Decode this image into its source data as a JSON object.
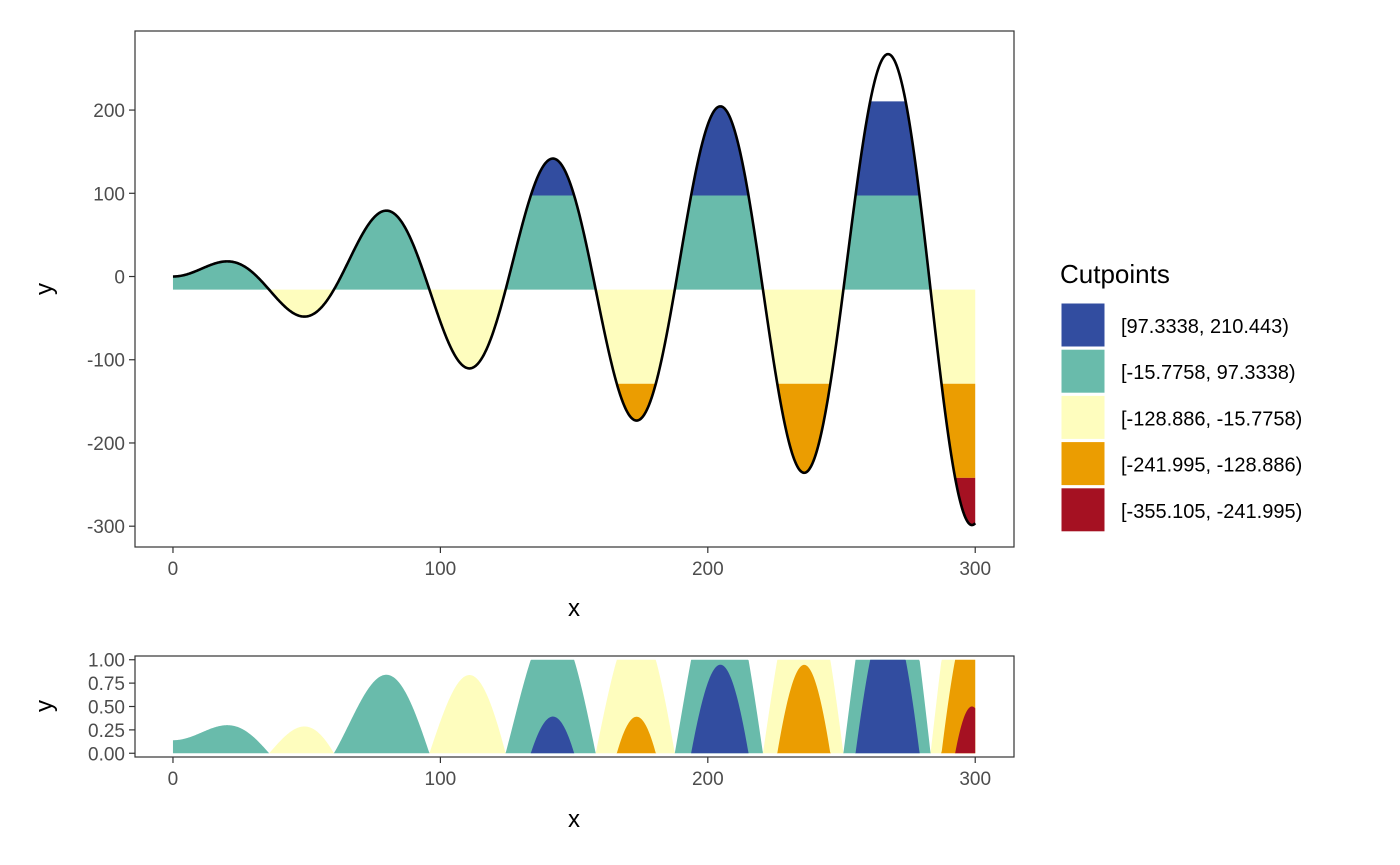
{
  "chart_data": [
    {
      "type": "area",
      "description_role": "main",
      "function": "y = x * sin(x / 10)",
      "x_range": [
        0,
        300
      ],
      "xlabel": "x",
      "ylabel": "y",
      "xlim": [
        -14.2,
        314.5
      ],
      "ylim": [
        -325,
        295
      ],
      "xticks": [
        0,
        100,
        200,
        300
      ],
      "yticks": [
        -300,
        -200,
        -100,
        0,
        100,
        200
      ],
      "ytick_labels": [
        "-300",
        "-200",
        "-100",
        "0",
        "100",
        "200"
      ],
      "baseline": -15.7758,
      "grid": false,
      "legend_position": "right",
      "legend": {
        "title": "Cutpoints",
        "items": [
          {
            "label": "[97.3338, 210.443)",
            "color": "#324DA0",
            "range": [
              97.3338,
              210.443
            ]
          },
          {
            "label": "[-15.7758, 97.3338)",
            "color": "#69BBAB",
            "range": [
              -15.7758,
              97.3338
            ]
          },
          {
            "label": "[-128.886, -15.7758)",
            "color": "#FEFDBE",
            "range": [
              -128.886,
              -15.7758
            ]
          },
          {
            "label": "[-241.995, -128.886)",
            "color": "#EB9D01",
            "range": [
              -241.995,
              -128.886
            ]
          },
          {
            "label": "[-355.105, -241.995)",
            "color": "#A51122",
            "range": [
              -355.105,
              -241.995
            ]
          }
        ]
      },
      "line_color": "#000000"
    },
    {
      "type": "area",
      "description_role": "horizon",
      "xlabel": "x",
      "ylabel": "y",
      "xlim": [
        -14.2,
        314.5
      ],
      "ylim": [
        -0.04,
        1.04
      ],
      "xticks": [
        0,
        100,
        200,
        300
      ],
      "yticks": [
        0,
        0.25,
        0.5,
        0.75,
        1
      ],
      "ytick_labels": [
        "0.00",
        "0.25",
        "0.50",
        "0.75",
        "1.00"
      ],
      "grid": false
    }
  ]
}
